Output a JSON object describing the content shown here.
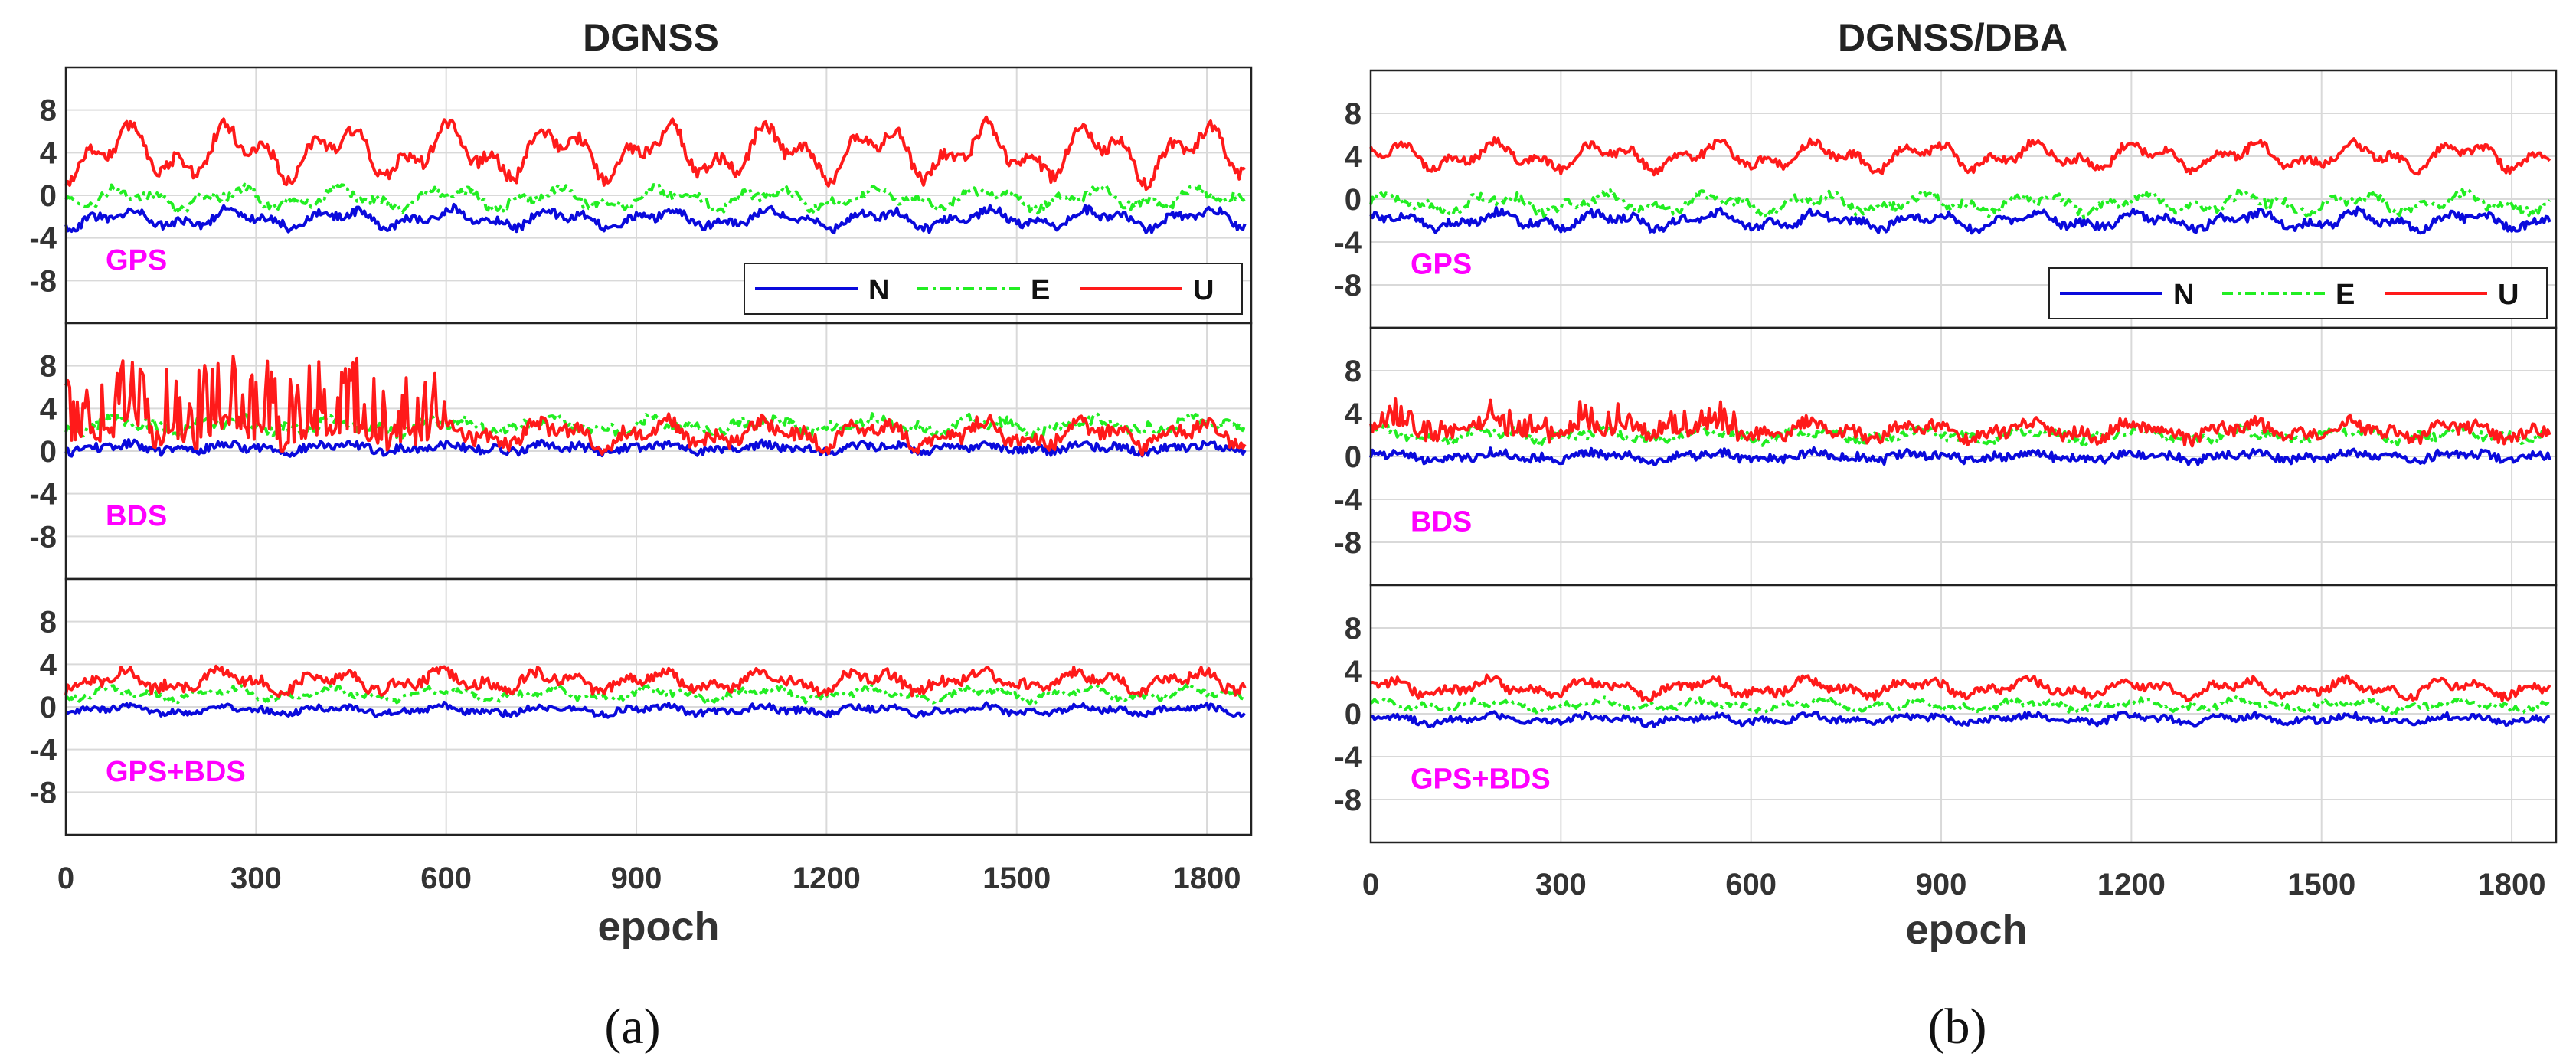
{
  "colors": {
    "N": "#0a0adc",
    "E": "#22ee22",
    "U": "#ff1a1a",
    "panel_label": "#ff00ff",
    "grid": "#d9d9d9"
  },
  "chart_data": [
    {
      "type": "line",
      "title": "DGNSS",
      "sublabel": "(a)",
      "xlabel": "epoch",
      "xlim": [
        0,
        1870
      ],
      "xticks": [
        0,
        300,
        600,
        900,
        1200,
        1500,
        1800
      ],
      "yticks": [
        -8,
        -4,
        0,
        4,
        8
      ],
      "ylim": [
        -12,
        12
      ],
      "legend": {
        "location": "bottom-right of first panel",
        "entries": [
          "N",
          "E",
          "U"
        ]
      },
      "panels": [
        {
          "label": "GPS",
          "series": [
            {
              "name": "N",
              "mean": -2.2,
              "amplitude": 0.9,
              "noise": 0.4,
              "spikes": 0,
              "spike_end": 0
            },
            {
              "name": "E",
              "mean": -0.3,
              "amplitude": 1.0,
              "noise": 0.4,
              "spikes": 0,
              "spike_end": 0
            },
            {
              "name": "U",
              "mean": 4.0,
              "amplitude": 2.6,
              "noise": 0.6,
              "spikes": 0,
              "spike_end": 0
            }
          ]
        },
        {
          "label": "BDS",
          "series": [
            {
              "name": "N",
              "mean": 0.3,
              "amplitude": 0.4,
              "noise": 0.4,
              "spikes": 0,
              "spike_end": 0
            },
            {
              "name": "E",
              "mean": 2.4,
              "amplitude": 0.7,
              "noise": 0.5,
              "spikes": 0,
              "spike_end": 0
            },
            {
              "name": "U",
              "mean": 1.6,
              "amplitude": 1.2,
              "noise": 0.7,
              "spikes": 7,
              "spike_end": 600
            }
          ]
        },
        {
          "label": "GPS+BDS",
          "series": [
            {
              "name": "N",
              "mean": -0.3,
              "amplitude": 0.4,
              "noise": 0.3,
              "spikes": 0,
              "spike_end": 0
            },
            {
              "name": "E",
              "mean": 1.2,
              "amplitude": 0.6,
              "noise": 0.3,
              "spikes": 0,
              "spike_end": 0
            },
            {
              "name": "U",
              "mean": 2.4,
              "amplitude": 1.0,
              "noise": 0.5,
              "spikes": 0,
              "spike_end": 0
            }
          ]
        }
      ]
    },
    {
      "type": "line",
      "title": "DGNSS/DBA",
      "sublabel": "(b)",
      "xlabel": "epoch",
      "xlim": [
        0,
        1870
      ],
      "xticks": [
        0,
        300,
        600,
        900,
        1200,
        1500,
        1800
      ],
      "yticks": [
        -8,
        -4,
        0,
        4,
        8
      ],
      "ylim": [
        -12,
        12
      ],
      "legend": {
        "location": "bottom-right of first panel",
        "entries": [
          "N",
          "E",
          "U"
        ]
      },
      "panels": [
        {
          "label": "GPS",
          "series": [
            {
              "name": "N",
              "mean": -2.0,
              "amplitude": 0.8,
              "noise": 0.4,
              "spikes": 0,
              "spike_end": 0
            },
            {
              "name": "E",
              "mean": -0.4,
              "amplitude": 0.9,
              "noise": 0.4,
              "spikes": 0,
              "spike_end": 0
            },
            {
              "name": "U",
              "mean": 4.0,
              "amplitude": 1.3,
              "noise": 0.4,
              "spikes": 0,
              "spike_end": 0
            }
          ]
        },
        {
          "label": "BDS",
          "series": [
            {
              "name": "N",
              "mean": 0.0,
              "amplitude": 0.4,
              "noise": 0.4,
              "spikes": 0,
              "spike_end": 0
            },
            {
              "name": "E",
              "mean": 2.0,
              "amplitude": 0.6,
              "noise": 0.4,
              "spikes": 0,
              "spike_end": 0
            },
            {
              "name": "U",
              "mean": 2.4,
              "amplitude": 0.8,
              "noise": 0.6,
              "spikes": 2,
              "spike_end": 600
            }
          ]
        },
        {
          "label": "GPS+BDS",
          "series": [
            {
              "name": "N",
              "mean": -0.5,
              "amplitude": 0.4,
              "noise": 0.3,
              "spikes": 0,
              "spike_end": 0
            },
            {
              "name": "E",
              "mean": 0.8,
              "amplitude": 0.5,
              "noise": 0.3,
              "spikes": 0,
              "spike_end": 0
            },
            {
              "name": "U",
              "mean": 2.4,
              "amplitude": 0.8,
              "noise": 0.4,
              "spikes": 0,
              "spike_end": 0
            }
          ]
        }
      ]
    }
  ]
}
